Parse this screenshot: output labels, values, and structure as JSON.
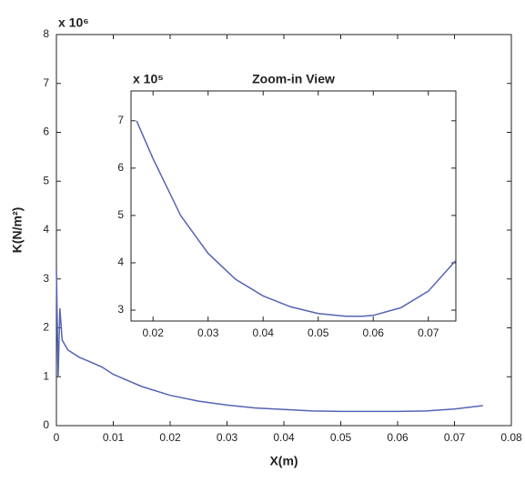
{
  "chart_data": [
    {
      "type": "line",
      "multiplier": "x 10⁶",
      "xlabel": "X(m)",
      "ylabel": "K(N/m²)",
      "xlim": [
        0,
        0.08
      ],
      "ylim": [
        0,
        8
      ],
      "xticks": [
        0,
        0.01,
        0.02,
        0.03,
        0.04,
        0.05,
        0.06,
        0.07,
        0.08
      ],
      "yticks": [
        0,
        1,
        2,
        3,
        4,
        5,
        6,
        7,
        8
      ],
      "series": [
        {
          "color": "#5563b5",
          "x": [
            0,
            0.0003,
            0.0006,
            0.001,
            0.002,
            0.004,
            0.006,
            0.008,
            0.01,
            0.015,
            0.02,
            0.025,
            0.03,
            0.035,
            0.04,
            0.045,
            0.05,
            0.055,
            0.06,
            0.065,
            0.07,
            0.075
          ],
          "values": [
            3.2,
            1.0,
            2.4,
            1.75,
            1.55,
            1.4,
            1.3,
            1.2,
            1.05,
            0.8,
            0.62,
            0.5,
            0.42,
            0.36,
            0.33,
            0.3,
            0.29,
            0.29,
            0.29,
            0.3,
            0.34,
            0.41
          ]
        }
      ]
    },
    {
      "type": "line",
      "title": "Zoom-in View",
      "multiplier": "x 10⁵",
      "xlim": [
        0.016,
        0.075
      ],
      "ylim": [
        2.77,
        7.63
      ],
      "xticks": [
        0.02,
        0.03,
        0.04,
        0.05,
        0.06,
        0.07
      ],
      "yticks": [
        3,
        4,
        5,
        6,
        7
      ],
      "series": [
        {
          "color": "#5563b5",
          "x": [
            0.017,
            0.02,
            0.025,
            0.03,
            0.035,
            0.04,
            0.045,
            0.05,
            0.055,
            0.058,
            0.06,
            0.065,
            0.07,
            0.075
          ],
          "values": [
            7.0,
            6.2,
            5.0,
            4.2,
            3.65,
            3.3,
            3.07,
            2.93,
            2.87,
            2.87,
            2.89,
            3.05,
            3.4,
            4.05
          ]
        }
      ]
    }
  ]
}
